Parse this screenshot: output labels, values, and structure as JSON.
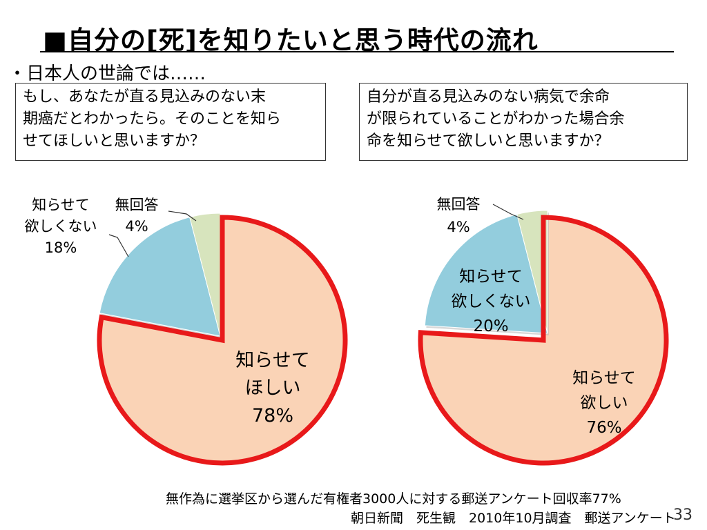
{
  "title": "■自分の[死]を知りたいと思う時代の流れ",
  "subtitle": "・日本人の世論では……",
  "questions": {
    "left": [
      "もし、あなたが直る見込みのない末",
      "期癌だとわかったら。そのことを知ら",
      "せてほしいと思いますか？"
    ],
    "right": [
      "自分が直る見込みのない病気で余命",
      "が限られていることがわかった場合余",
      "命を知らせて欲しいと思いますか？"
    ]
  },
  "labels": {
    "left": {
      "yes": [
        "知らせて",
        "ほしい",
        "78%"
      ],
      "no": [
        "知らせて",
        "欲しくない",
        "18%"
      ],
      "na": [
        "無回答",
        "4%"
      ]
    },
    "right": {
      "yes": [
        "知らせて",
        "欲しい",
        "76%"
      ],
      "no": [
        "知らせて",
        "欲しくない",
        "20%"
      ],
      "na": [
        "無回答",
        "4%"
      ]
    }
  },
  "footnotes": {
    "line1": "無作為に選挙区から選んだ有権者3000人に対する郵送アンケート回収率77%",
    "line2": "朝日新聞　死生観　2010年10月調査　郵送アンケート"
  },
  "page_number": "33",
  "colors": {
    "yes": "#FAD3B6",
    "no": "#93CDDD",
    "na": "#D7E4BD",
    "highlight": "#E8191A"
  },
  "chart_data": [
    {
      "type": "pie",
      "categories": [
        "知らせてほしい",
        "知らせて欲しくない",
        "無回答"
      ],
      "values": [
        78,
        18,
        4
      ],
      "highlighted": "知らせてほしい"
    },
    {
      "type": "pie",
      "categories": [
        "知らせて欲しい",
        "知らせて欲しくない",
        "無回答"
      ],
      "values": [
        76,
        20,
        4
      ],
      "highlighted": "知らせて欲しい"
    }
  ]
}
